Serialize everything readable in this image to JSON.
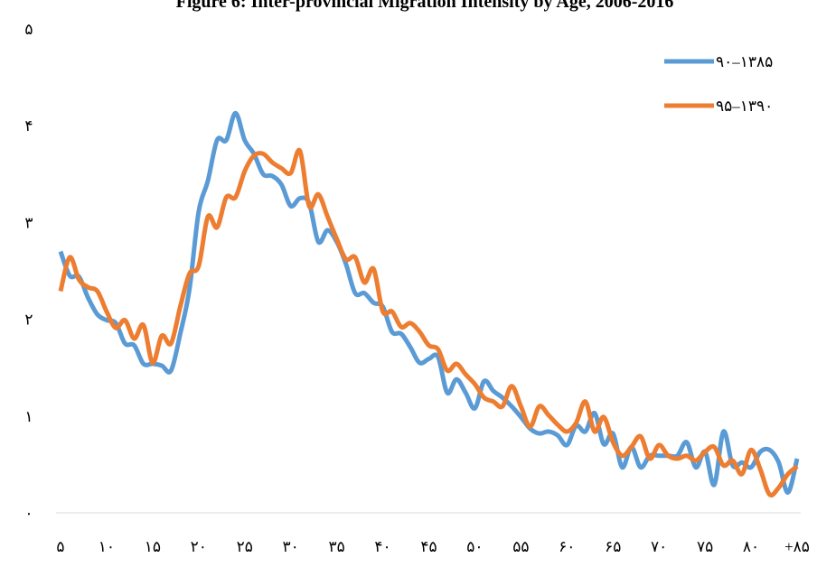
{
  "chart_data": {
    "type": "line",
    "title": "Figure 6: Inter-provincial Migration Intensity by Age, 2006-2016",
    "x": [
      5,
      6,
      7,
      8,
      9,
      10,
      11,
      12,
      13,
      14,
      15,
      16,
      17,
      18,
      19,
      20,
      21,
      22,
      23,
      24,
      25,
      26,
      27,
      28,
      29,
      30,
      31,
      32,
      33,
      34,
      35,
      36,
      37,
      38,
      39,
      40,
      41,
      42,
      43,
      44,
      45,
      46,
      47,
      48,
      49,
      50,
      51,
      52,
      53,
      54,
      55,
      56,
      57,
      58,
      59,
      60,
      61,
      62,
      63,
      64,
      65,
      66,
      67,
      68,
      69,
      70,
      71,
      72,
      73,
      74,
      75,
      76,
      77,
      78,
      79,
      80,
      81,
      82,
      83,
      84,
      85
    ],
    "series": [
      {
        "name": "۹۰–۱۳۸۵",
        "color": "#5b9bd5",
        "values": [
          2.7,
          2.45,
          2.44,
          2.22,
          2.05,
          1.99,
          1.96,
          1.75,
          1.73,
          1.54,
          1.54,
          1.52,
          1.47,
          1.85,
          2.31,
          3.11,
          3.43,
          3.85,
          3.85,
          4.13,
          3.85,
          3.71,
          3.5,
          3.48,
          3.39,
          3.17,
          3.25,
          3.2,
          2.8,
          2.92,
          2.8,
          2.57,
          2.27,
          2.27,
          2.17,
          2.13,
          1.87,
          1.85,
          1.71,
          1.55,
          1.59,
          1.61,
          1.24,
          1.38,
          1.24,
          1.08,
          1.36,
          1.26,
          1.19,
          1.1,
          0.99,
          0.87,
          0.82,
          0.84,
          0.8,
          0.7,
          0.9,
          0.84,
          1.03,
          0.71,
          0.82,
          0.47,
          0.68,
          0.47,
          0.59,
          0.59,
          0.59,
          0.59,
          0.73,
          0.47,
          0.63,
          0.29,
          0.84,
          0.49,
          0.52,
          0.47,
          0.63,
          0.65,
          0.52,
          0.21,
          0.56
        ]
      },
      {
        "name": "۹۵–۱۳۹۰",
        "color": "#ed7d31",
        "values": [
          2.29,
          2.64,
          2.41,
          2.33,
          2.29,
          2.08,
          1.91,
          1.99,
          1.8,
          1.94,
          1.55,
          1.83,
          1.75,
          2.13,
          2.47,
          2.55,
          3.06,
          2.95,
          3.26,
          3.26,
          3.53,
          3.69,
          3.71,
          3.62,
          3.56,
          3.51,
          3.74,
          3.17,
          3.29,
          3.06,
          2.83,
          2.62,
          2.64,
          2.38,
          2.52,
          2.08,
          2.08,
          1.92,
          1.96,
          1.87,
          1.73,
          1.69,
          1.47,
          1.54,
          1.43,
          1.33,
          1.19,
          1.15,
          1.1,
          1.31,
          1.1,
          0.89,
          1.1,
          1.01,
          0.91,
          0.84,
          0.93,
          1.15,
          0.84,
          0.99,
          0.73,
          0.59,
          0.68,
          0.79,
          0.56,
          0.7,
          0.59,
          0.56,
          0.59,
          0.54,
          0.63,
          0.68,
          0.49,
          0.54,
          0.4,
          0.65,
          0.45,
          0.19,
          0.26,
          0.4,
          0.48
        ]
      }
    ],
    "xlim": [
      5,
      85
    ],
    "xticks": [
      {
        "value": 5,
        "label": "۵"
      },
      {
        "value": 10,
        "label": "۱۰"
      },
      {
        "value": 15,
        "label": "۱۵"
      },
      {
        "value": 20,
        "label": "۲۰"
      },
      {
        "value": 25,
        "label": "۲۵"
      },
      {
        "value": 30,
        "label": "۳۰"
      },
      {
        "value": 35,
        "label": "۳۵"
      },
      {
        "value": 40,
        "label": "۴۰"
      },
      {
        "value": 45,
        "label": "۴۵"
      },
      {
        "value": 50,
        "label": "۵۰"
      },
      {
        "value": 55,
        "label": "۵۵"
      },
      {
        "value": 60,
        "label": "۶۰"
      },
      {
        "value": 65,
        "label": "۶۵"
      },
      {
        "value": 70,
        "label": "۷۰"
      },
      {
        "value": 75,
        "label": "۷۵"
      },
      {
        "value": 80,
        "label": "۸۰"
      },
      {
        "value": 85,
        "label": "+۸۵"
      }
    ],
    "ylim": [
      0,
      5
    ],
    "yticks": [
      {
        "value": 0,
        "label": "۰"
      },
      {
        "value": 1,
        "label": "۱"
      },
      {
        "value": 2,
        "label": "۲"
      },
      {
        "value": 3,
        "label": "۳"
      },
      {
        "value": 4,
        "label": "۴"
      },
      {
        "value": 5,
        "label": "۵"
      }
    ],
    "grid": false,
    "legend": "upper-right"
  }
}
